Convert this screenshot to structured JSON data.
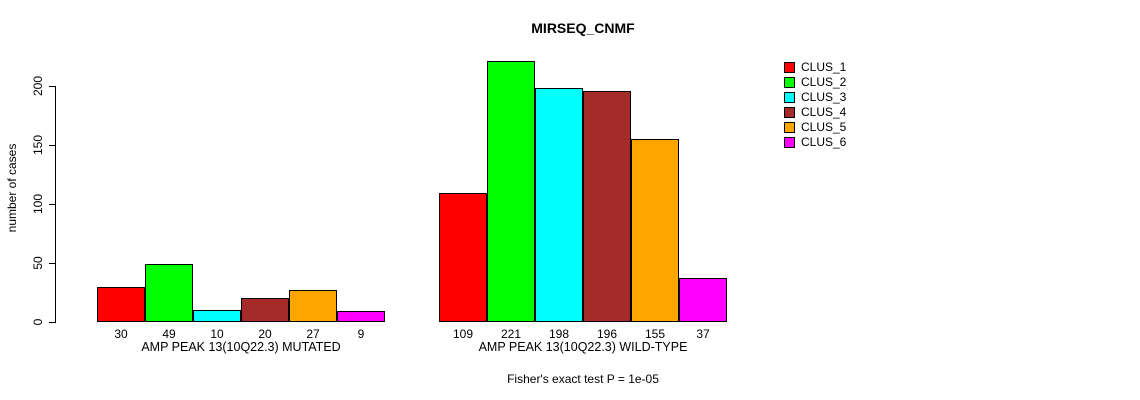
{
  "chart_data": {
    "type": "bar",
    "title": "MIRSEQ_CNMF",
    "ylabel": "number of cases",
    "xlabel": "",
    "yticks": [
      0,
      50,
      100,
      150,
      200
    ],
    "ylim": [
      0,
      230
    ],
    "grid": false,
    "legend_position": "right",
    "categories": [
      "AMP PEAK 13(10Q22.3) MUTATED",
      "AMP PEAK 13(10Q22.3) WILD-TYPE"
    ],
    "groups": [
      {
        "label": "AMP PEAK 13(10Q22.3) MUTATED",
        "values": [
          30,
          49,
          10,
          20,
          27,
          9
        ]
      },
      {
        "label": "AMP PEAK 13(10Q22.3) WILD-TYPE",
        "values": [
          109,
          221,
          198,
          196,
          155,
          37
        ]
      }
    ],
    "series": [
      {
        "name": "CLUS_1",
        "color": "#FF0000",
        "values": [
          30,
          109
        ]
      },
      {
        "name": "CLUS_2",
        "color": "#00FF00",
        "values": [
          49,
          221
        ]
      },
      {
        "name": "CLUS_3",
        "color": "#00FFFF",
        "values": [
          10,
          198
        ]
      },
      {
        "name": "CLUS_4",
        "color": "#A52A2A",
        "values": [
          20,
          196
        ]
      },
      {
        "name": "CLUS_5",
        "color": "#FFA500",
        "values": [
          27,
          155
        ]
      },
      {
        "name": "CLUS_6",
        "color": "#FF00FF",
        "values": [
          9,
          37
        ]
      }
    ],
    "footnote": "Fisher's exact test P = 1e-05"
  }
}
